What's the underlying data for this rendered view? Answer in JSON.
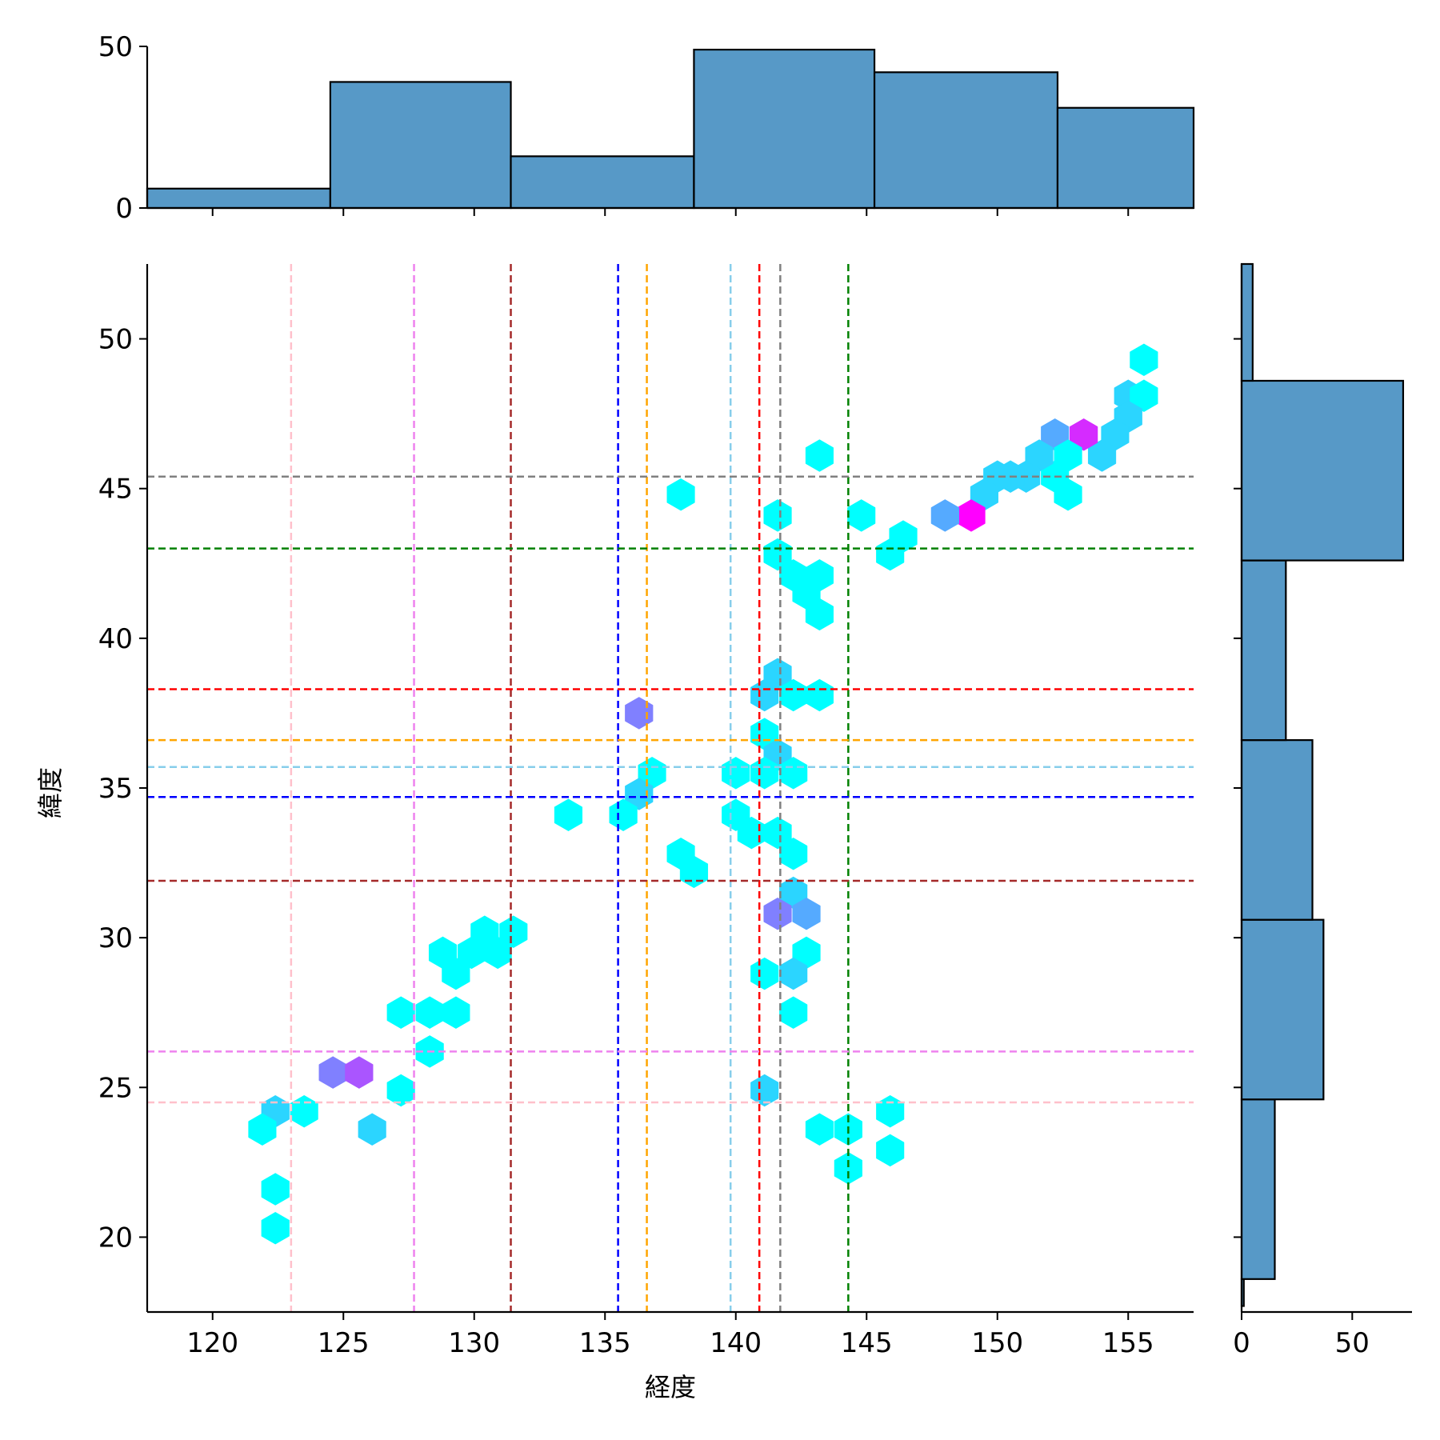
{
  "chart_data": {
    "type": "hexbin",
    "xlabel": "経度",
    "ylabel": "緯度",
    "xlim": [
      117.5,
      157.5
    ],
    "ylim": [
      17.5,
      52.5
    ],
    "x_ticks": [
      120,
      125,
      130,
      135,
      140,
      145,
      150,
      155
    ],
    "y_ticks": [
      20,
      25,
      30,
      35,
      40,
      45,
      50
    ],
    "colormap": [
      "#00ffff",
      "#ff00ff"
    ],
    "top_hist": {
      "edges": [
        117.5,
        124.5,
        131.4,
        138.4,
        145.3,
        152.3,
        157.5
      ],
      "counts": [
        6,
        39,
        16,
        49,
        42,
        31
      ],
      "ticks": [
        0,
        50
      ],
      "ylim": [
        0,
        50
      ]
    },
    "right_hist": {
      "edges": [
        17.7,
        18.6,
        24.6,
        30.6,
        36.6,
        42.6,
        48.6,
        52.5
      ],
      "counts": [
        1,
        15,
        37,
        32,
        20,
        73,
        5
      ],
      "ticks": [
        0,
        50
      ],
      "xlim": [
        0,
        77
      ]
    },
    "vlines": [
      {
        "x": 123.0,
        "color": "#ffc0cb"
      },
      {
        "x": 127.7,
        "color": "#ee82ee"
      },
      {
        "x": 131.4,
        "color": "#a52a2a"
      },
      {
        "x": 135.5,
        "color": "#0000ff"
      },
      {
        "x": 136.6,
        "color": "#ffa500"
      },
      {
        "x": 139.8,
        "color": "#87ceeb"
      },
      {
        "x": 140.9,
        "color": "#ff0000"
      },
      {
        "x": 141.7,
        "color": "#808080"
      },
      {
        "x": 144.3,
        "color": "#008000"
      }
    ],
    "hlines": [
      {
        "y": 45.4,
        "color": "#808080"
      },
      {
        "y": 43.0,
        "color": "#008000"
      },
      {
        "y": 38.3,
        "color": "#ff0000"
      },
      {
        "y": 36.6,
        "color": "#ffa500"
      },
      {
        "y": 35.7,
        "color": "#87ceeb"
      },
      {
        "y": 34.7,
        "color": "#0000ff"
      },
      {
        "y": 31.9,
        "color": "#a52a2a"
      },
      {
        "y": 26.2,
        "color": "#ee82ee"
      },
      {
        "y": 24.5,
        "color": "#ffc0cb"
      }
    ],
    "hexbins": [
      {
        "x": 155.6,
        "y": 49.3,
        "c": 1
      },
      {
        "x": 155.0,
        "y": 48.1,
        "c": 2
      },
      {
        "x": 155.6,
        "y": 48.1,
        "c": 1
      },
      {
        "x": 155.0,
        "y": 47.4,
        "c": 2
      },
      {
        "x": 154.5,
        "y": 46.8,
        "c": 2
      },
      {
        "x": 154.0,
        "y": 46.1,
        "c": 2
      },
      {
        "x": 153.3,
        "y": 46.8,
        "c": 6
      },
      {
        "x": 152.2,
        "y": 46.8,
        "c": 3
      },
      {
        "x": 152.7,
        "y": 46.1,
        "c": 1
      },
      {
        "x": 152.2,
        "y": 45.4,
        "c": 1
      },
      {
        "x": 151.6,
        "y": 46.1,
        "c": 2
      },
      {
        "x": 151.1,
        "y": 45.4,
        "c": 2
      },
      {
        "x": 150.5,
        "y": 45.4,
        "c": 2
      },
      {
        "x": 150.0,
        "y": 45.4,
        "c": 2
      },
      {
        "x": 149.5,
        "y": 44.8,
        "c": 2
      },
      {
        "x": 152.7,
        "y": 44.8,
        "c": 1
      },
      {
        "x": 149.0,
        "y": 44.1,
        "c": 7
      },
      {
        "x": 148.0,
        "y": 44.1,
        "c": 3
      },
      {
        "x": 144.8,
        "y": 44.1,
        "c": 1
      },
      {
        "x": 146.4,
        "y": 43.4,
        "c": 1
      },
      {
        "x": 145.9,
        "y": 42.8,
        "c": 1
      },
      {
        "x": 143.2,
        "y": 46.1,
        "c": 1
      },
      {
        "x": 137.9,
        "y": 44.8,
        "c": 1
      },
      {
        "x": 141.6,
        "y": 44.1,
        "c": 1
      },
      {
        "x": 141.6,
        "y": 42.8,
        "c": 1
      },
      {
        "x": 142.2,
        "y": 42.1,
        "c": 1
      },
      {
        "x": 143.2,
        "y": 42.1,
        "c": 1
      },
      {
        "x": 142.7,
        "y": 41.5,
        "c": 1
      },
      {
        "x": 143.2,
        "y": 40.8,
        "c": 1
      },
      {
        "x": 141.6,
        "y": 38.8,
        "c": 2
      },
      {
        "x": 141.1,
        "y": 38.1,
        "c": 2
      },
      {
        "x": 142.2,
        "y": 38.1,
        "c": 1
      },
      {
        "x": 143.2,
        "y": 38.1,
        "c": 1
      },
      {
        "x": 136.3,
        "y": 37.5,
        "c": 4
      },
      {
        "x": 141.1,
        "y": 36.8,
        "c": 1
      },
      {
        "x": 141.6,
        "y": 36.1,
        "c": 2
      },
      {
        "x": 136.8,
        "y": 35.5,
        "c": 1
      },
      {
        "x": 140.0,
        "y": 35.5,
        "c": 1
      },
      {
        "x": 141.1,
        "y": 35.5,
        "c": 1
      },
      {
        "x": 142.2,
        "y": 35.5,
        "c": 1
      },
      {
        "x": 136.3,
        "y": 34.8,
        "c": 2
      },
      {
        "x": 133.6,
        "y": 34.1,
        "c": 1
      },
      {
        "x": 135.7,
        "y": 34.1,
        "c": 1
      },
      {
        "x": 140.0,
        "y": 34.1,
        "c": 1
      },
      {
        "x": 140.6,
        "y": 33.5,
        "c": 1
      },
      {
        "x": 141.6,
        "y": 33.5,
        "c": 1
      },
      {
        "x": 142.2,
        "y": 32.8,
        "c": 1
      },
      {
        "x": 137.9,
        "y": 32.8,
        "c": 1
      },
      {
        "x": 138.4,
        "y": 32.2,
        "c": 1
      },
      {
        "x": 142.2,
        "y": 31.5,
        "c": 2
      },
      {
        "x": 141.6,
        "y": 30.8,
        "c": 4
      },
      {
        "x": 142.7,
        "y": 30.8,
        "c": 3
      },
      {
        "x": 131.5,
        "y": 30.2,
        "c": 1
      },
      {
        "x": 130.4,
        "y": 30.2,
        "c": 1
      },
      {
        "x": 130.9,
        "y": 29.5,
        "c": 1
      },
      {
        "x": 129.9,
        "y": 29.5,
        "c": 1
      },
      {
        "x": 128.8,
        "y": 29.5,
        "c": 1
      },
      {
        "x": 129.3,
        "y": 28.8,
        "c": 1
      },
      {
        "x": 142.7,
        "y": 29.5,
        "c": 1
      },
      {
        "x": 141.1,
        "y": 28.8,
        "c": 1
      },
      {
        "x": 142.2,
        "y": 28.8,
        "c": 2
      },
      {
        "x": 127.2,
        "y": 27.5,
        "c": 1
      },
      {
        "x": 128.3,
        "y": 27.5,
        "c": 1
      },
      {
        "x": 129.3,
        "y": 27.5,
        "c": 1
      },
      {
        "x": 142.2,
        "y": 27.5,
        "c": 1
      },
      {
        "x": 128.3,
        "y": 26.2,
        "c": 1
      },
      {
        "x": 124.6,
        "y": 25.5,
        "c": 4
      },
      {
        "x": 125.6,
        "y": 25.5,
        "c": 5
      },
      {
        "x": 127.2,
        "y": 24.9,
        "c": 1
      },
      {
        "x": 141.1,
        "y": 24.9,
        "c": 2
      },
      {
        "x": 122.4,
        "y": 24.2,
        "c": 2
      },
      {
        "x": 123.5,
        "y": 24.2,
        "c": 1
      },
      {
        "x": 145.9,
        "y": 24.2,
        "c": 1
      },
      {
        "x": 121.9,
        "y": 23.6,
        "c": 1
      },
      {
        "x": 126.1,
        "y": 23.6,
        "c": 2
      },
      {
        "x": 143.2,
        "y": 23.6,
        "c": 1
      },
      {
        "x": 144.3,
        "y": 23.6,
        "c": 1
      },
      {
        "x": 145.9,
        "y": 22.9,
        "c": 1
      },
      {
        "x": 144.3,
        "y": 22.3,
        "c": 1
      },
      {
        "x": 122.4,
        "y": 21.6,
        "c": 1
      },
      {
        "x": 122.4,
        "y": 20.3,
        "c": 1
      }
    ],
    "hex_cmax": 7
  }
}
